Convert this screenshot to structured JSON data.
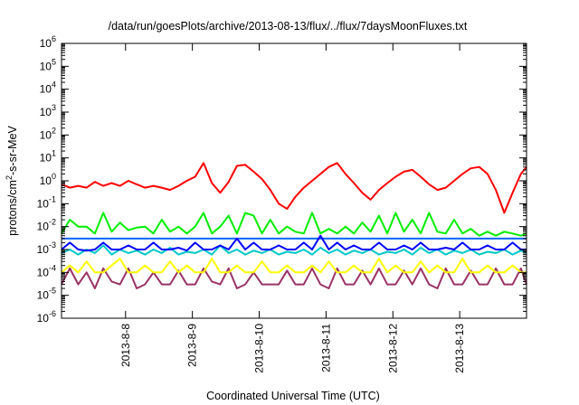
{
  "chart_data": {
    "type": "line",
    "title": "/data/run/goesPlots/archive/2013-08-13/flux/../flux/7daysMoonFluxes.txt",
    "xlabel": "Coordinated Universal Time (UTC)",
    "ylabel": {
      "prefix": "protons/cm",
      "sup": "2",
      "suffix": "-s-sr-MeV"
    },
    "yscale": "log",
    "ylim": [
      1e-06,
      1000000.0
    ],
    "yticks": [
      {
        "base": "10",
        "exp": "6",
        "value": 1000000.0
      },
      {
        "base": "10",
        "exp": "5",
        "value": 100000.0
      },
      {
        "base": "10",
        "exp": "4",
        "value": 10000.0
      },
      {
        "base": "10",
        "exp": "3",
        "value": 1000.0
      },
      {
        "base": "10",
        "exp": "2",
        "value": 100.0
      },
      {
        "base": "10",
        "exp": "1",
        "value": 10.0
      },
      {
        "base": "10",
        "exp": "0",
        "value": 1.0
      },
      {
        "base": "10",
        "exp": "-1",
        "value": 0.1
      },
      {
        "base": "10",
        "exp": "-2",
        "value": 0.01
      },
      {
        "base": "10",
        "exp": "-3",
        "value": 0.001
      },
      {
        "base": "10",
        "exp": "-4",
        "value": 0.0001
      },
      {
        "base": "10",
        "exp": "-5",
        "value": 1e-05
      },
      {
        "base": "10",
        "exp": "-6",
        "value": 1e-06
      }
    ],
    "xlim": [
      "2013-08-07T01:00",
      "2013-08-14T00:00"
    ],
    "xticks": [
      {
        "label": "2013-8-8",
        "value": "2013-08-08"
      },
      {
        "label": "2013-8-9",
        "value": "2013-08-09"
      },
      {
        "label": "2013-8-10",
        "value": "2013-08-10"
      },
      {
        "label": "2013-8-11",
        "value": "2013-08-11"
      },
      {
        "label": "2013-8-12",
        "value": "2013-08-12"
      },
      {
        "label": "2013-8-13",
        "value": "2013-08-13"
      }
    ],
    "x": [
      "2013-08-07T01:00",
      "2013-08-07T04:00",
      "2013-08-07T07:00",
      "2013-08-07T10:00",
      "2013-08-07T13:00",
      "2013-08-07T16:00",
      "2013-08-07T19:00",
      "2013-08-07T22:00",
      "2013-08-08T01:00",
      "2013-08-08T04:00",
      "2013-08-08T07:00",
      "2013-08-08T10:00",
      "2013-08-08T13:00",
      "2013-08-08T16:00",
      "2013-08-08T19:00",
      "2013-08-08T22:00",
      "2013-08-09T01:00",
      "2013-08-09T04:00",
      "2013-08-09T07:00",
      "2013-08-09T10:00",
      "2013-08-09T13:00",
      "2013-08-09T16:00",
      "2013-08-09T19:00",
      "2013-08-09T22:00",
      "2013-08-10T01:00",
      "2013-08-10T04:00",
      "2013-08-10T07:00",
      "2013-08-10T10:00",
      "2013-08-10T13:00",
      "2013-08-10T16:00",
      "2013-08-10T19:00",
      "2013-08-10T22:00",
      "2013-08-11T01:00",
      "2013-08-11T04:00",
      "2013-08-11T07:00",
      "2013-08-11T10:00",
      "2013-08-11T13:00",
      "2013-08-11T16:00",
      "2013-08-11T19:00",
      "2013-08-11T22:00",
      "2013-08-12T01:00",
      "2013-08-12T04:00",
      "2013-08-12T07:00",
      "2013-08-12T10:00",
      "2013-08-12T13:00",
      "2013-08-12T16:00",
      "2013-08-12T19:00",
      "2013-08-12T22:00",
      "2013-08-13T01:00",
      "2013-08-13T04:00",
      "2013-08-13T07:00",
      "2013-08-13T10:00",
      "2013-08-13T13:00",
      "2013-08-13T16:00",
      "2013-08-13T19:00",
      "2013-08-13T22:00",
      "2013-08-14T00:00"
    ],
    "series": [
      {
        "color": "#ff0000",
        "values": [
          0.7,
          0.5,
          0.6,
          0.5,
          0.9,
          0.6,
          0.8,
          0.6,
          1.0,
          0.7,
          0.5,
          0.6,
          0.5,
          0.4,
          0.6,
          1.0,
          1.5,
          6.0,
          0.8,
          0.3,
          0.9,
          4.5,
          5.0,
          2.5,
          1.2,
          0.4,
          0.1,
          0.06,
          0.2,
          0.5,
          1.0,
          2.0,
          4.0,
          6.0,
          2.0,
          0.8,
          0.3,
          0.15,
          0.4,
          0.8,
          1.5,
          2.5,
          3.0,
          1.5,
          0.7,
          0.4,
          0.5,
          1.0,
          2.0,
          3.5,
          4.0,
          2.0,
          0.4,
          0.04,
          0.3,
          2.0,
          4.0
        ]
      },
      {
        "color": "#00ee00",
        "values": [
          0.005,
          0.02,
          0.01,
          0.01,
          0.005,
          0.04,
          0.006,
          0.015,
          0.007,
          0.009,
          0.01,
          0.005,
          0.02,
          0.006,
          0.01,
          0.005,
          0.01,
          0.04,
          0.005,
          0.01,
          0.03,
          0.005,
          0.04,
          0.03,
          0.005,
          0.02,
          0.005,
          0.01,
          0.006,
          0.005,
          0.04,
          0.005,
          0.008,
          0.005,
          0.01,
          0.005,
          0.015,
          0.006,
          0.03,
          0.005,
          0.04,
          0.006,
          0.02,
          0.005,
          0.04,
          0.006,
          0.005,
          0.02,
          0.005,
          0.008,
          0.004,
          0.006,
          0.004,
          0.006,
          0.005,
          0.004,
          0.005
        ]
      },
      {
        "color": "#0000ff",
        "values": [
          0.001,
          0.002,
          0.001,
          0.0009,
          0.001,
          0.002,
          0.001,
          0.001,
          0.0015,
          0.001,
          0.001,
          0.002,
          0.001,
          0.001,
          0.0012,
          0.0009,
          0.002,
          0.001,
          0.001,
          0.0015,
          0.001,
          0.003,
          0.001,
          0.002,
          0.001,
          0.001,
          0.0015,
          0.001,
          0.001,
          0.002,
          0.001,
          0.004,
          0.001,
          0.002,
          0.001,
          0.0015,
          0.001,
          0.001,
          0.002,
          0.001,
          0.001,
          0.0015,
          0.001,
          0.002,
          0.001,
          0.001,
          0.0012,
          0.001,
          0.002,
          0.001,
          0.001,
          0.0015,
          0.001,
          0.001,
          0.002,
          0.001,
          0.001
        ]
      },
      {
        "color": "#0066ff",
        "values": [
          0.003,
          0.003,
          0.003,
          0.003,
          0.003,
          0.003,
          0.003,
          0.003,
          0.003,
          0.003,
          0.003,
          0.003,
          0.003,
          0.003,
          0.003,
          0.003,
          0.003,
          0.003,
          0.003,
          0.003,
          0.003,
          0.003,
          0.003,
          0.003,
          0.003,
          0.003,
          0.003,
          0.003,
          0.003,
          0.003,
          0.003,
          0.003,
          0.003,
          0.003,
          0.003,
          0.003,
          0.003,
          0.003,
          0.003,
          0.003,
          0.003,
          0.003,
          0.003,
          0.003,
          0.003,
          0.003,
          0.003,
          0.003,
          0.003,
          0.003,
          0.003,
          0.003,
          0.003,
          0.003,
          0.003,
          0.003,
          0.003
        ]
      },
      {
        "color": "#00c8c8",
        "values": [
          0.0007,
          0.001,
          0.0006,
          0.001,
          0.0007,
          0.0015,
          0.0006,
          0.001,
          0.0007,
          0.0009,
          0.0006,
          0.001,
          0.0007,
          0.0012,
          0.0006,
          0.0008,
          0.0007,
          0.001,
          0.0006,
          0.0015,
          0.0007,
          0.001,
          0.0006,
          0.0009,
          0.0007,
          0.001,
          0.0006,
          0.0008,
          0.0007,
          0.001,
          0.0006,
          0.0012,
          0.0007,
          0.001,
          0.0006,
          0.0009,
          0.0007,
          0.001,
          0.0006,
          0.0008,
          0.0007,
          0.001,
          0.0006,
          0.0012,
          0.0007,
          0.001,
          0.0006,
          0.0009,
          0.0007,
          0.001,
          0.0006,
          0.0008,
          0.0007,
          0.001,
          0.0006,
          0.0009,
          0.0007
        ]
      },
      {
        "color": "#ffff00",
        "values": [
          0.0001,
          0.0002,
          0.0001,
          0.0003,
          0.0001,
          0.0001,
          0.0002,
          0.0004,
          0.0001,
          0.0001,
          0.0002,
          0.0001,
          0.0001,
          0.0003,
          0.0001,
          0.0002,
          0.0001,
          0.0001,
          0.0004,
          0.0001,
          0.0001,
          0.0002,
          0.0001,
          0.0001,
          0.0003,
          0.0001,
          0.0001,
          0.0002,
          0.0001,
          0.0001,
          0.0002,
          0.0001,
          0.0003,
          0.0001,
          0.0001,
          0.0002,
          0.0001,
          0.0001,
          0.0004,
          0.0001,
          0.0002,
          0.0001,
          0.0001,
          0.0003,
          0.0001,
          0.0002,
          0.0001,
          0.0001,
          0.0004,
          0.0001,
          0.0001,
          0.0002,
          0.0001,
          0.0001,
          0.0002,
          0.0001,
          0.0001
        ]
      },
      {
        "color": "#993366",
        "values": [
          3e-05,
          0.00015,
          3e-05,
          0.0001,
          2e-05,
          0.00015,
          4e-05,
          3e-05,
          0.00015,
          2e-05,
          3e-05,
          0.0001,
          3e-05,
          3e-05,
          0.00012,
          3e-05,
          3e-05,
          0.00015,
          4e-05,
          3e-05,
          0.00015,
          2e-05,
          3e-05,
          0.0001,
          3e-05,
          3e-05,
          3e-05,
          0.00012,
          3e-05,
          3e-05,
          0.00015,
          3e-05,
          2e-05,
          0.00015,
          3e-05,
          3e-05,
          0.00012,
          3e-05,
          0.00015,
          3e-05,
          3e-05,
          0.00012,
          3e-05,
          0.00015,
          3e-05,
          2e-05,
          0.00015,
          3e-05,
          3e-05,
          0.00012,
          3e-05,
          3e-05,
          0.00015,
          3e-05,
          3e-05,
          0.00015,
          3e-05
        ]
      }
    ]
  }
}
